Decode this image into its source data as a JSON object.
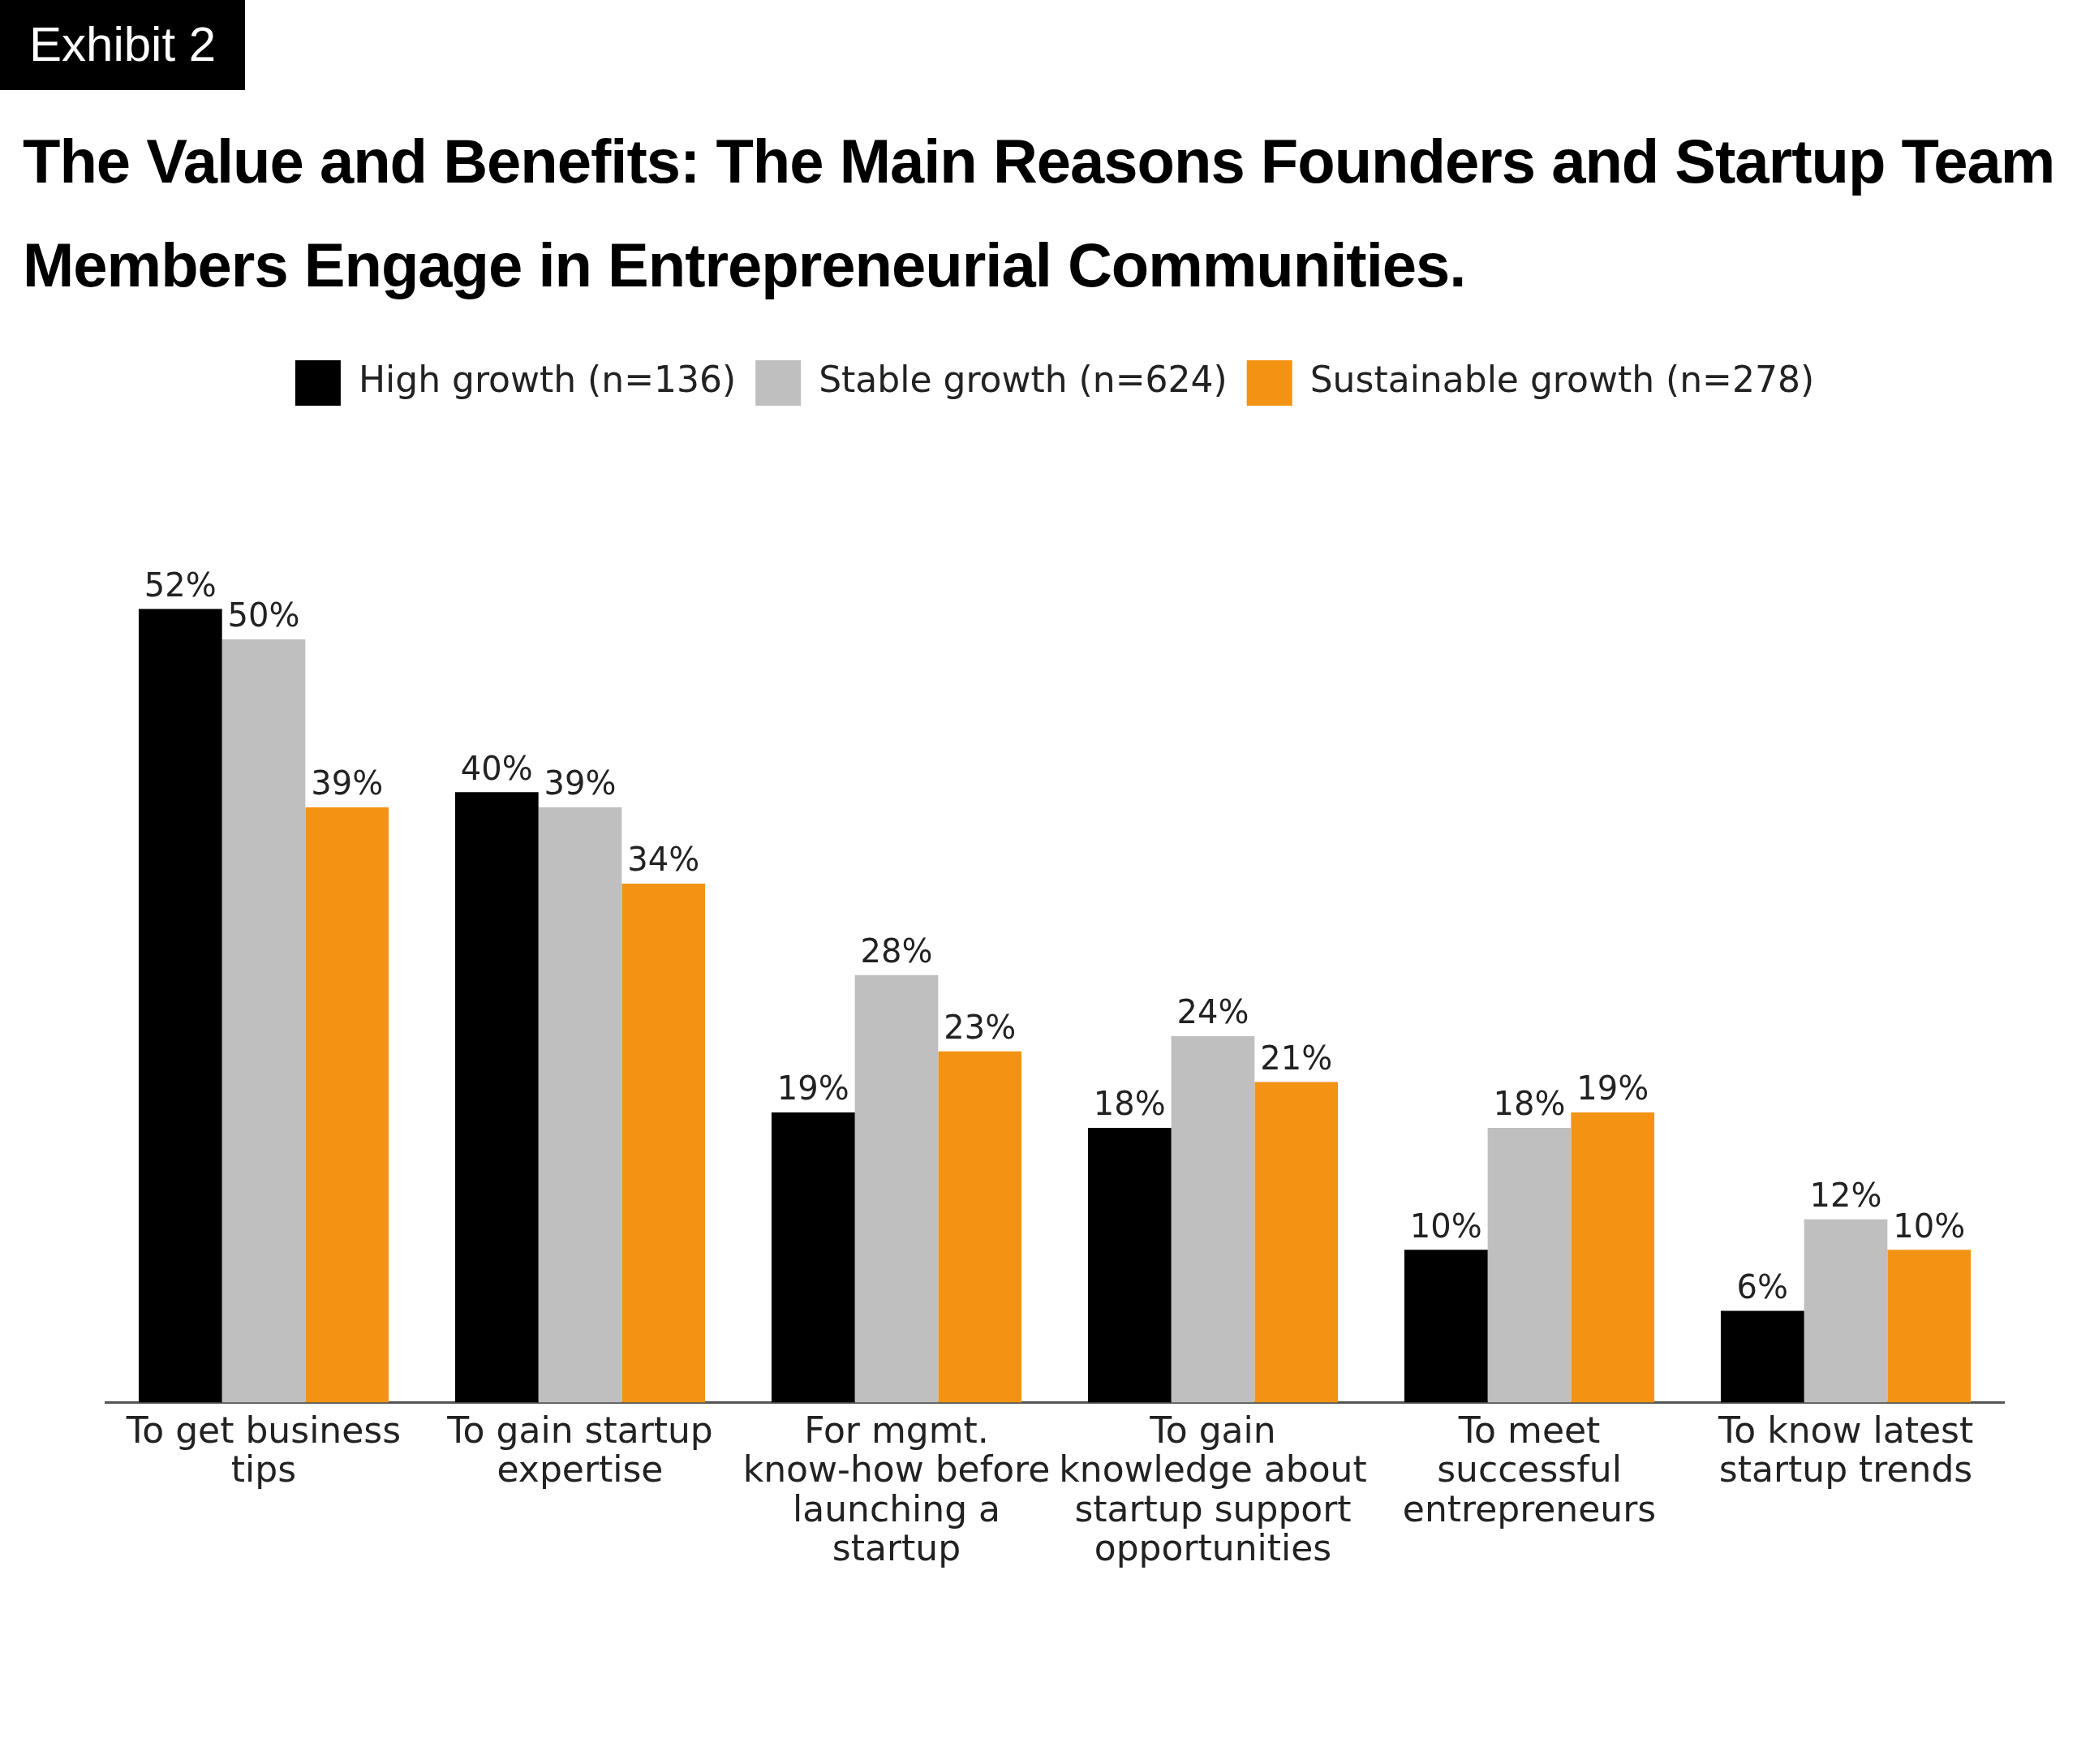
{
  "chart_data": {
    "type": "bar",
    "title": "The Value and Benefits: The Main Reasons Founders and Startup Team Members Engage in Entrepreneurial Communities.",
    "annotations": [
      "Exhibit 2"
    ],
    "categories": [
      "To get business tips",
      "To gain startup expertise",
      "For mgmt. know-how before launching a startup",
      "To gain knowledge about startup support opportunities",
      "To meet successful entrepreneurs",
      "To know latest startup trends"
    ],
    "series": [
      {
        "name": "High growth (n=136)",
        "color": "#000000",
        "values": [
          52,
          40,
          19,
          18,
          10,
          6
        ],
        "value_labels": [
          "52%",
          "40%",
          "19%",
          "18%",
          "10%",
          "6%"
        ]
      },
      {
        "name": "Stable growth (n=624)",
        "color": "#bfbfbf",
        "values": [
          50,
          39,
          28,
          24,
          18,
          12
        ],
        "value_labels": [
          "50%",
          "39%",
          "28%",
          "24%",
          "18%",
          "12%"
        ]
      },
      {
        "name": "Sustainable growth (n=278)",
        "color": "#f39313",
        "values": [
          39,
          34,
          23,
          21,
          19,
          10
        ],
        "value_labels": [
          "39%",
          "34%",
          "23%",
          "21%",
          "19%",
          "10%"
        ]
      }
    ],
    "grid": false,
    "legend": "top"
  }
}
